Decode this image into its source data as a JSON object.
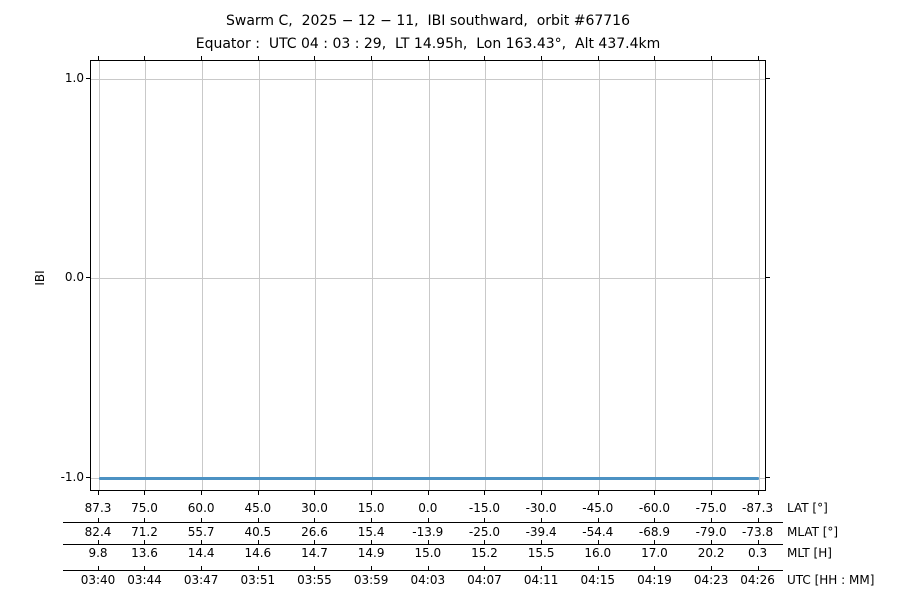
{
  "figure": {
    "title": "Swarm C,  2025 − 12 − 11,  IBI southward,  orbit #67716",
    "subtitle": "Equator :  UTC 04 : 03 : 29,  LT 14.95h,  Lon 163.43°,  Alt 437.4km"
  },
  "chart_data": {
    "type": "line",
    "title": "Swarm C, 2025-12-11, IBI southward, orbit #67716",
    "subtitle": "Equator: UTC 04:03:29, LT 14.95h, Lon 163.43°, Alt 437.4km",
    "ylabel": "IBI",
    "ylim": [
      -1.1,
      1.1
    ],
    "yticks": [
      "1.0",
      "0.0",
      "-1.0"
    ],
    "grid": true,
    "legend": "none",
    "series": [
      {
        "name": "IBI",
        "shape": "constant-horizontal-line",
        "y": -1.0,
        "x_start_utc": "03:40",
        "x_end_utc": "04:26",
        "color": "#4c92c3"
      }
    ],
    "x_axis_rows": [
      {
        "key": "lat",
        "label": "LAT [°]",
        "values": [
          "87.3",
          "75.0",
          "60.0",
          "45.0",
          "30.0",
          "15.0",
          "0.0",
          "-15.0",
          "-30.0",
          "-45.0",
          "-60.0",
          "-75.0",
          "-87.3"
        ]
      },
      {
        "key": "mlat",
        "label": "MLAT [°]",
        "values": [
          "82.4",
          "71.2",
          "55.7",
          "40.5",
          "26.6",
          "15.4",
          "-13.9",
          "-25.0",
          "-39.4",
          "-54.4",
          "-68.9",
          "-79.0",
          "-73.8"
        ]
      },
      {
        "key": "mlt",
        "label": "MLT [H]",
        "values": [
          "9.8",
          "13.6",
          "14.4",
          "14.6",
          "14.7",
          "14.9",
          "15.0",
          "15.2",
          "15.5",
          "16.0",
          "17.0",
          "20.2",
          "0.3"
        ]
      },
      {
        "key": "utc",
        "label": "UTC [HH : MM]",
        "values": [
          "03:40",
          "03:44",
          "03:47",
          "03:51",
          "03:55",
          "03:59",
          "04:03",
          "04:07",
          "04:11",
          "04:15",
          "04:19",
          "04:23",
          "04:26"
        ]
      }
    ],
    "colors": {
      "line": "#4c92c3",
      "grid": "#c9c9c9",
      "axis": "#000000"
    }
  }
}
